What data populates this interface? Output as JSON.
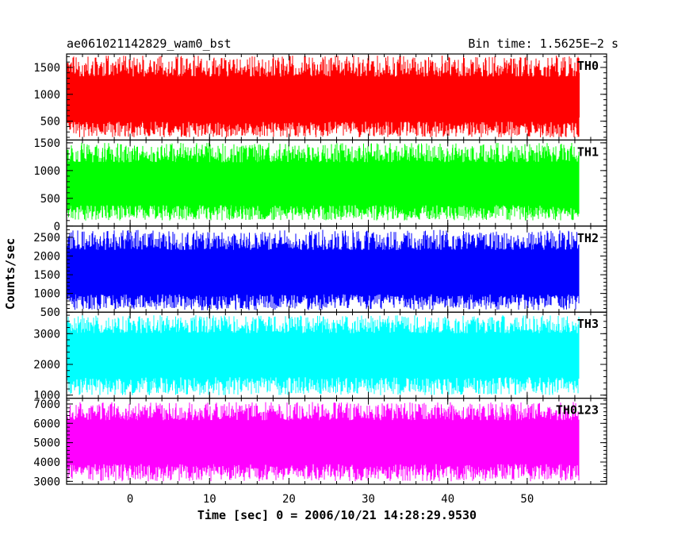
{
  "chart_data": {
    "type": "line",
    "title_left": "ae061021142829_wam0_bst",
    "title_right": "Bin time: 1.5625E−2 s",
    "xlabel": "Time [sec] 0 = 2006/10/21 14:28:29.9530",
    "ylabel": "Counts/sec",
    "xlim": [
      -8,
      60
    ],
    "xticks": [
      0,
      10,
      20,
      30,
      40,
      50
    ],
    "xrange_data": [
      -8,
      56.5
    ],
    "grid": false,
    "panels": [
      {
        "name": "TH0",
        "color": "#ff0000",
        "ylim": [
          150,
          1750
        ],
        "yticks": [
          500,
          1000,
          1500
        ],
        "base": 850,
        "lo": 200,
        "hi": 1720,
        "seed": 11,
        "summary": {
          "mean": 850,
          "min": 200,
          "max": 1720
        }
      },
      {
        "name": "TH1",
        "color": "#00ff00",
        "ylim": [
          0,
          1550
        ],
        "yticks": [
          0,
          500,
          1000,
          1500
        ],
        "base": 720,
        "lo": 100,
        "hi": 1500,
        "seed": 23,
        "summary": {
          "mean": 720,
          "min": 100,
          "max": 1500
        }
      },
      {
        "name": "TH2",
        "color": "#0000ff",
        "ylim": [
          500,
          2800
        ],
        "yticks": [
          500,
          1000,
          1500,
          2000,
          2500
        ],
        "base": 1500,
        "lo": 550,
        "hi": 2700,
        "seed": 37,
        "summary": {
          "mean": 1500,
          "min": 550,
          "max": 2700
        }
      },
      {
        "name": "TH3",
        "color": "#00ffff",
        "ylim": [
          900,
          3700
        ],
        "yticks": [
          1000,
          2000,
          3000
        ],
        "base": 2300,
        "lo": 1000,
        "hi": 3600,
        "seed": 41,
        "summary": {
          "mean": 2300,
          "min": 1000,
          "max": 3600
        }
      },
      {
        "name": "TH0123",
        "color": "#ff00ff",
        "ylim": [
          2850,
          7300
        ],
        "yticks": [
          3000,
          4000,
          5000,
          6000,
          7000
        ],
        "base": 5000,
        "lo": 3000,
        "hi": 7100,
        "seed": 53,
        "summary": {
          "mean": 5000,
          "min": 3000,
          "max": 7100
        }
      }
    ]
  }
}
